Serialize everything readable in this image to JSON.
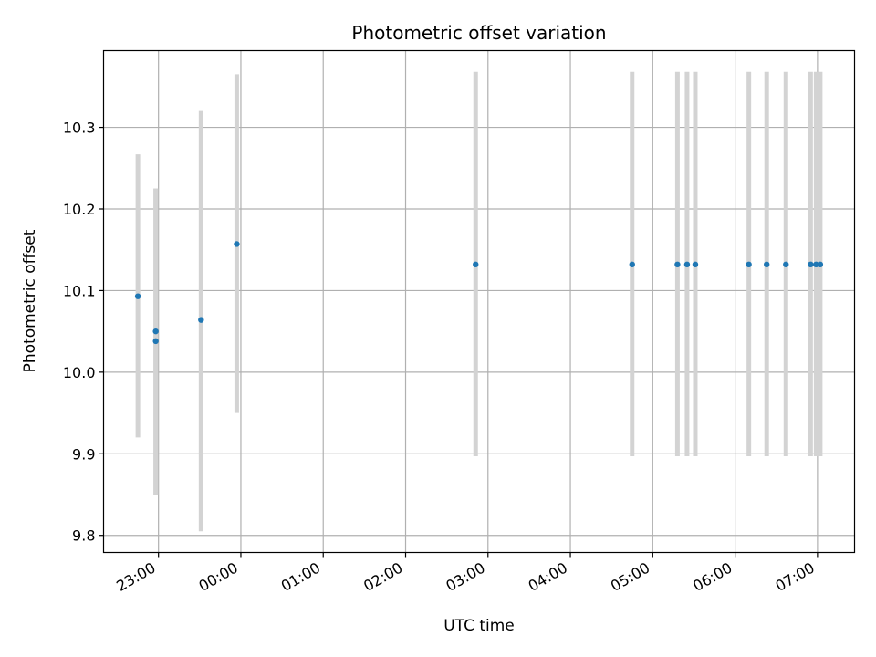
{
  "chart_data": {
    "type": "scatter",
    "title": "Photometric offset variation",
    "xlabel": "UTC time",
    "ylabel": "Photometric offset",
    "x_axis": "time",
    "xlim": [
      "22:20",
      "07:27"
    ],
    "ylim": [
      9.779,
      10.394
    ],
    "grid": true,
    "x_ticks": [
      "23:00",
      "00:00",
      "01:00",
      "02:00",
      "03:00",
      "04:00",
      "05:00",
      "06:00",
      "07:00"
    ],
    "y_ticks": [
      9.8,
      9.9,
      10.0,
      10.1,
      10.2,
      10.3
    ],
    "y_tick_labels": [
      "9.8",
      "9.9",
      "10.0",
      "10.1",
      "10.2",
      "10.3"
    ],
    "point_color": "#1f77b4",
    "errorbar_color": "#d3d3d3",
    "points": [
      {
        "x": "22:45",
        "y": 10.093,
        "low": 9.92,
        "high": 10.267
      },
      {
        "x": "22:58",
        "y": 10.05,
        "low": 9.85,
        "high": 10.225
      },
      {
        "x": "22:58",
        "y": 10.038,
        "low": 9.85,
        "high": 10.225
      },
      {
        "x": "23:31",
        "y": 10.064,
        "low": 9.805,
        "high": 10.32
      },
      {
        "x": "23:57",
        "y": 10.157,
        "low": 9.95,
        "high": 10.365
      },
      {
        "x": "02:51",
        "y": 10.132,
        "low": 9.897,
        "high": 10.368
      },
      {
        "x": "04:45",
        "y": 10.132,
        "low": 9.897,
        "high": 10.368
      },
      {
        "x": "05:18",
        "y": 10.132,
        "low": 9.897,
        "high": 10.368
      },
      {
        "x": "05:25",
        "y": 10.132,
        "low": 9.897,
        "high": 10.368
      },
      {
        "x": "05:31",
        "y": 10.132,
        "low": 9.897,
        "high": 10.368
      },
      {
        "x": "06:10",
        "y": 10.132,
        "low": 9.897,
        "high": 10.368
      },
      {
        "x": "06:23",
        "y": 10.132,
        "low": 9.897,
        "high": 10.368
      },
      {
        "x": "06:37",
        "y": 10.132,
        "low": 9.897,
        "high": 10.368
      },
      {
        "x": "06:55",
        "y": 10.132,
        "low": 9.897,
        "high": 10.368
      },
      {
        "x": "06:59",
        "y": 10.132,
        "low": 9.897,
        "high": 10.368
      },
      {
        "x": "07:02",
        "y": 10.132,
        "low": 9.897,
        "high": 10.368
      }
    ]
  }
}
